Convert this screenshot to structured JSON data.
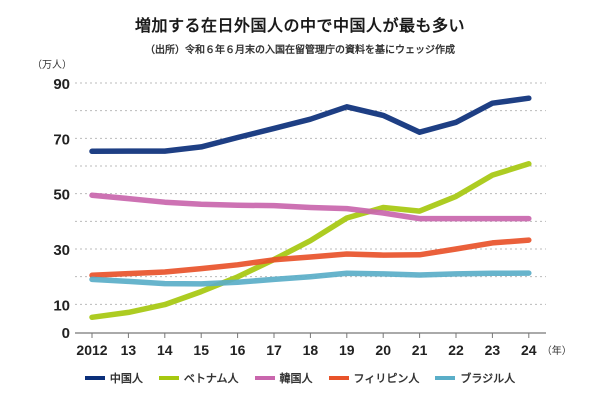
{
  "header": {
    "title": "増加する在日外国人の中で中国人が最も多い",
    "subtitle": "（出所）令和６年６月末の入国在留管理庁の資料を基にウェッジ作成"
  },
  "chart_data": {
    "type": "line",
    "title": "増加する在日外国人の中で中国人が最も多い",
    "subtitle": "（出所）令和６年６月末の入国在留管理庁の資料を基にウェッジ作成",
    "ylabel": "（万人）",
    "xlabel": "（年）",
    "x": [
      "2012",
      "13",
      "14",
      "15",
      "16",
      "17",
      "18",
      "19",
      "20",
      "21",
      "22",
      "23",
      "24"
    ],
    "ylim": [
      0,
      90
    ],
    "yticks": [
      0,
      10,
      30,
      50,
      70,
      90
    ],
    "grid_values": [
      10,
      20,
      30,
      40,
      50,
      60,
      70,
      80,
      90
    ],
    "grid": true,
    "legend_position": "bottom",
    "series": [
      {
        "name": "中国人",
        "color": "#0b2f7a",
        "values": [
          65.3,
          65.4,
          65.4,
          66.9,
          70.3,
          73.6,
          76.9,
          81.4,
          78.3,
          72.2,
          75.8,
          82.7,
          84.5
        ]
      },
      {
        "name": "ベトナム人",
        "color": "#a6c80f",
        "values": [
          5.3,
          7.1,
          9.9,
          14.6,
          19.9,
          26.2,
          33.0,
          41.2,
          45.0,
          43.7,
          49.0,
          56.7,
          60.8
        ]
      },
      {
        "name": "韓国人",
        "color": "#c966ad",
        "values": [
          49.4,
          48.2,
          46.9,
          46.2,
          45.8,
          45.7,
          45.0,
          44.6,
          43.0,
          41.0,
          41.0,
          41.0,
          41.0
        ]
      },
      {
        "name": "フィリピン人",
        "color": "#e8532a",
        "values": [
          20.5,
          21.1,
          21.7,
          22.9,
          24.3,
          26.1,
          27.1,
          28.2,
          27.8,
          27.9,
          30.0,
          32.2,
          33.2
        ]
      },
      {
        "name": "ブラジル人",
        "color": "#5aaec8",
        "values": [
          19.0,
          18.3,
          17.5,
          17.4,
          18.0,
          19.0,
          20.0,
          21.2,
          21.0,
          20.6,
          21.0,
          21.2,
          21.3
        ]
      }
    ]
  }
}
